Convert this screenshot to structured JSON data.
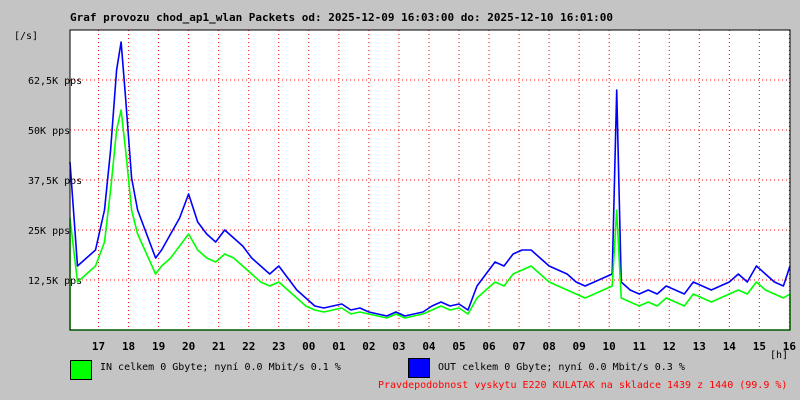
{
  "title": "Graf provozu chod_ap1_wlan Packets od: 2025-12-09 16:03:00 do: 2025-12-10 16:01:00",
  "colors": {
    "in": "#00ff00",
    "out": "#0000ff",
    "warning": "#ff0000",
    "grid": "#ff0000"
  },
  "legend": {
    "in_text": "IN celkem 0 Gbyte; nyní   0.0 Mbit/s 0.1 %",
    "out_text": "OUT celkem 0 Gbyte; nyní   0.0 Mbit/s 0.3 %"
  },
  "probability_text": "Pravdepodobnost vyskytu E220 KULATAK na skladce 1439 z 1440 (99.9 %)",
  "chart_data": {
    "type": "area",
    "ylabel": "[/s]",
    "xlabel": "[h]",
    "ylim": [
      0,
      75000
    ],
    "y_ticks": [
      {
        "value": 12500,
        "label": "12,5K pps"
      },
      {
        "value": 25000,
        "label": "25K pps"
      },
      {
        "value": 37500,
        "label": "37,5K pps"
      },
      {
        "value": 50000,
        "label": "50K pps"
      },
      {
        "value": 62500,
        "label": "62,5K pps"
      }
    ],
    "x_range": [
      16.05,
      40.02
    ],
    "x_ticks": [
      {
        "value": 17,
        "label": "17"
      },
      {
        "value": 18,
        "label": "18"
      },
      {
        "value": 19,
        "label": "19"
      },
      {
        "value": 20,
        "label": "20"
      },
      {
        "value": 21,
        "label": "21"
      },
      {
        "value": 22,
        "label": "22"
      },
      {
        "value": 23,
        "label": "23"
      },
      {
        "value": 24,
        "label": "00"
      },
      {
        "value": 25,
        "label": "01"
      },
      {
        "value": 26,
        "label": "02"
      },
      {
        "value": 27,
        "label": "03"
      },
      {
        "value": 28,
        "label": "04"
      },
      {
        "value": 29,
        "label": "05"
      },
      {
        "value": 30,
        "label": "06"
      },
      {
        "value": 31,
        "label": "07"
      },
      {
        "value": 32,
        "label": "08"
      },
      {
        "value": 33,
        "label": "09"
      },
      {
        "value": 34,
        "label": "10"
      },
      {
        "value": 35,
        "label": "11"
      },
      {
        "value": 36,
        "label": "12"
      },
      {
        "value": 37,
        "label": "13"
      },
      {
        "value": 38,
        "label": "14"
      },
      {
        "value": 39,
        "label": "15"
      },
      {
        "value": 40,
        "label": "16"
      }
    ],
    "series": [
      {
        "name": "IN",
        "color": "#00ff00",
        "x": [
          16.05,
          16.3,
          16.6,
          16.9,
          17.2,
          17.4,
          17.6,
          17.75,
          17.9,
          18.1,
          18.3,
          18.6,
          18.9,
          19.1,
          19.4,
          19.7,
          20.0,
          20.3,
          20.6,
          20.9,
          21.2,
          21.5,
          21.8,
          22.1,
          22.4,
          22.7,
          23.0,
          23.3,
          23.6,
          23.9,
          24.2,
          24.5,
          24.8,
          25.1,
          25.4,
          25.7,
          26.0,
          26.3,
          26.6,
          26.9,
          27.2,
          27.5,
          27.8,
          28.1,
          28.4,
          28.7,
          29.0,
          29.3,
          29.6,
          29.9,
          30.2,
          30.5,
          30.8,
          31.1,
          31.4,
          31.7,
          32.0,
          32.3,
          32.6,
          32.9,
          33.2,
          33.5,
          33.8,
          34.1,
          34.25,
          34.4,
          34.7,
          35.0,
          35.3,
          35.6,
          35.9,
          36.2,
          36.5,
          36.8,
          37.1,
          37.4,
          37.7,
          38.0,
          38.3,
          38.6,
          38.9,
          39.2,
          39.5,
          39.8,
          40.02
        ],
        "values": [
          28000,
          12000,
          14000,
          16000,
          22000,
          35000,
          50000,
          55000,
          45000,
          30000,
          24000,
          19000,
          14000,
          16000,
          18000,
          21000,
          24000,
          20000,
          18000,
          17000,
          19000,
          18000,
          16000,
          14000,
          12000,
          11000,
          12000,
          10000,
          8000,
          6000,
          5000,
          4500,
          5000,
          5500,
          4000,
          4500,
          4000,
          3500,
          3000,
          4000,
          3000,
          3500,
          4000,
          5000,
          6000,
          5000,
          5500,
          4000,
          8000,
          10000,
          12000,
          11000,
          14000,
          15000,
          16000,
          14000,
          12000,
          11000,
          10000,
          9000,
          8000,
          9000,
          10000,
          11000,
          30000,
          8000,
          7000,
          6000,
          7000,
          6000,
          8000,
          7000,
          6000,
          9000,
          8000,
          7000,
          8000,
          9000,
          10000,
          9000,
          12000,
          10000,
          9000,
          8000,
          9000
        ]
      },
      {
        "name": "OUT",
        "color": "#0000ff",
        "x": [
          16.05,
          16.3,
          16.6,
          16.9,
          17.2,
          17.4,
          17.6,
          17.75,
          17.9,
          18.1,
          18.3,
          18.6,
          18.9,
          19.1,
          19.4,
          19.7,
          20.0,
          20.3,
          20.6,
          20.9,
          21.2,
          21.5,
          21.8,
          22.1,
          22.4,
          22.7,
          23.0,
          23.3,
          23.6,
          23.9,
          24.2,
          24.5,
          24.8,
          25.1,
          25.4,
          25.7,
          26.0,
          26.3,
          26.6,
          26.9,
          27.2,
          27.5,
          27.8,
          28.1,
          28.4,
          28.7,
          29.0,
          29.3,
          29.6,
          29.9,
          30.2,
          30.5,
          30.8,
          31.1,
          31.4,
          31.7,
          32.0,
          32.3,
          32.6,
          32.9,
          33.2,
          33.5,
          33.8,
          34.1,
          34.25,
          34.4,
          34.7,
          35.0,
          35.3,
          35.6,
          35.9,
          36.2,
          36.5,
          36.8,
          37.1,
          37.4,
          37.7,
          38.0,
          38.3,
          38.6,
          38.9,
          39.2,
          39.5,
          39.8,
          40.02
        ],
        "values": [
          42000,
          16000,
          18000,
          20000,
          30000,
          45000,
          65000,
          72000,
          58000,
          38000,
          30000,
          24000,
          18000,
          20000,
          24000,
          28000,
          34000,
          27000,
          24000,
          22000,
          25000,
          23000,
          21000,
          18000,
          16000,
          14000,
          16000,
          13000,
          10000,
          8000,
          6000,
          5500,
          6000,
          6500,
          5000,
          5500,
          4500,
          4000,
          3500,
          4500,
          3500,
          4000,
          4500,
          6000,
          7000,
          6000,
          6500,
          5000,
          11000,
          14000,
          17000,
          16000,
          19000,
          20000,
          20000,
          18000,
          16000,
          15000,
          14000,
          12000,
          11000,
          12000,
          13000,
          14000,
          60000,
          12000,
          10000,
          9000,
          10000,
          9000,
          11000,
          10000,
          9000,
          12000,
          11000,
          10000,
          11000,
          12000,
          14000,
          12000,
          16000,
          14000,
          12000,
          11000,
          16000
        ]
      }
    ]
  }
}
